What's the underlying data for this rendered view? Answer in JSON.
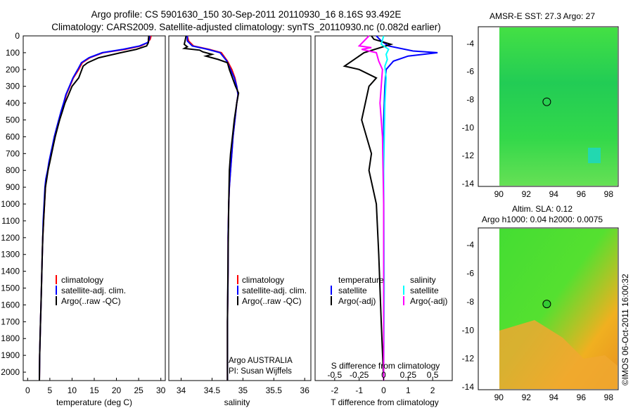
{
  "header": {
    "line1": "Argo profile: CS 5901630_150 30-Sep-2011 20110930_16 8.16S 93.492E",
    "line2": "Climatology: CARS2009. Satellite-adjusted climatology: synTS_20110930.nc (0.082d earlier)"
  },
  "colors": {
    "climatology": "#ff0000",
    "satellite": "#0000ff",
    "argo": "#000000",
    "sal_satellite": "#00ffff",
    "sal_argo": "#ff00ff",
    "map_ocean": "#33dd44",
    "map_land": "#ffffff"
  },
  "chart_data": [
    {
      "type": "line",
      "id": "temperature",
      "xlabel": "temperature (deg C)",
      "ylabel": "",
      "xlim": [
        -1,
        31
      ],
      "ylim": [
        2050,
        0
      ],
      "xticks": [
        "0",
        "5",
        "10",
        "15",
        "20",
        "25",
        "30"
      ],
      "xtick_values": [
        0,
        5,
        10,
        15,
        20,
        25,
        30
      ],
      "yticks": [
        "0",
        "100",
        "200",
        "300",
        "400",
        "500",
        "600",
        "700",
        "800",
        "900",
        "1000",
        "1100",
        "1200",
        "1300",
        "1400",
        "1500",
        "1600",
        "1700",
        "1800",
        "1900",
        "2000"
      ],
      "ytick_values": [
        0,
        100,
        200,
        300,
        400,
        500,
        600,
        700,
        800,
        900,
        1000,
        1100,
        1200,
        1300,
        1400,
        1500,
        1600,
        1700,
        1800,
        1900,
        2000
      ],
      "legend": [
        "climatology",
        "satellite-adj. clim.",
        "Argo(..raw -QC)"
      ],
      "series": [
        {
          "name": "climatology",
          "color": "#ff0000",
          "x": [
            27.8,
            27.6,
            27.0,
            25.5,
            22,
            17,
            14,
            12.3,
            11.5,
            10.3,
            9.5,
            8.7,
            8.2,
            7.6,
            7.1,
            6.6,
            6.1,
            5.7,
            5.3,
            4.9,
            4.6,
            4.2,
            4.0,
            3.8,
            3.6,
            3.4,
            3.3,
            3.2,
            3.1,
            3.0,
            2.9,
            2.8,
            2.7,
            2.65
          ],
          "y": [
            0,
            20,
            40,
            60,
            80,
            100,
            130,
            160,
            200,
            250,
            300,
            350,
            400,
            450,
            500,
            550,
            600,
            650,
            700,
            750,
            800,
            850,
            900,
            1000,
            1100,
            1200,
            1300,
            1400,
            1500,
            1600,
            1700,
            1800,
            1900,
            2050
          ]
        },
        {
          "name": "satellite-adj. clim.",
          "color": "#0000ff",
          "x": [
            27.5,
            27.4,
            27.0,
            25.2,
            21.5,
            16.8,
            13.8,
            12.1,
            11.3,
            10.2,
            9.4,
            8.6,
            8.1,
            7.5,
            7.0,
            6.5,
            6.0,
            5.6,
            5.2,
            4.8,
            4.5,
            4.1,
            3.9,
            3.7,
            3.5,
            3.4,
            3.3,
            3.2,
            3.1,
            3.0,
            2.9,
            2.8,
            2.7,
            2.65
          ],
          "y": [
            0,
            20,
            40,
            60,
            80,
            100,
            130,
            160,
            200,
            250,
            300,
            350,
            400,
            450,
            500,
            550,
            600,
            650,
            700,
            750,
            800,
            850,
            900,
            1000,
            1100,
            1200,
            1300,
            1400,
            1500,
            1600,
            1700,
            1800,
            1900,
            2050
          ]
        },
        {
          "name": "Argo(..raw -QC)",
          "color": "#000000",
          "x": [
            27.3,
            27.2,
            27.2,
            26.8,
            24.5,
            21,
            16,
            13.5,
            12.5,
            11.5,
            10.0,
            9.2,
            8.4,
            7.8,
            7.2,
            6.7,
            6.2,
            5.8,
            5.4,
            5.0,
            4.6,
            4.3,
            4.0,
            3.8,
            3.6,
            3.4,
            3.3,
            3.2,
            3.1,
            3.0,
            2.9,
            2.8,
            2.7,
            2.65
          ],
          "y": [
            0,
            20,
            40,
            60,
            80,
            100,
            130,
            160,
            180,
            250,
            300,
            350,
            400,
            450,
            500,
            550,
            600,
            650,
            700,
            750,
            800,
            850,
            900,
            1000,
            1100,
            1200,
            1300,
            1400,
            1500,
            1600,
            1700,
            1800,
            1900,
            2050
          ]
        }
      ]
    },
    {
      "type": "line",
      "id": "salinity",
      "xlabel": "salinity",
      "ylabel": "",
      "xlim": [
        33.8,
        36.1
      ],
      "ylim": [
        2050,
        0
      ],
      "xticks": [
        "34",
        "34.5",
        "35",
        "35.5",
        "36"
      ],
      "xtick_values": [
        34,
        34.5,
        35,
        35.5,
        36
      ],
      "legend": [
        "climatology",
        "satellite-adj. clim.",
        "Argo(..raw -QC)"
      ],
      "annotation": [
        "Argo AUSTRALIA",
        "PI: Susan Wijffels"
      ],
      "series": [
        {
          "name": "climatology",
          "color": "#ff0000",
          "x": [
            34.1,
            34.12,
            34.2,
            34.45,
            34.65,
            34.75,
            34.82,
            34.87,
            34.9,
            34.92,
            34.9,
            34.87,
            34.84,
            34.82,
            34.8,
            34.78,
            34.77,
            34.76,
            34.76,
            34.75,
            34.75
          ],
          "y": [
            0,
            30,
            60,
            80,
            100,
            150,
            200,
            250,
            300,
            350,
            400,
            500,
            600,
            700,
            800,
            900,
            1000,
            1200,
            1400,
            1700,
            2050
          ]
        },
        {
          "name": "satellite-adj. clim.",
          "color": "#0000ff",
          "x": [
            34.1,
            34.1,
            34.18,
            34.43,
            34.63,
            34.74,
            34.8,
            34.86,
            34.9,
            34.92,
            34.9,
            34.87,
            34.84,
            34.82,
            34.8,
            34.78,
            34.77,
            34.76,
            34.76,
            34.75,
            34.75
          ],
          "y": [
            0,
            30,
            60,
            80,
            100,
            150,
            200,
            250,
            300,
            350,
            400,
            500,
            600,
            700,
            800,
            900,
            1000,
            1200,
            1400,
            1700,
            2050
          ]
        },
        {
          "name": "Argo(..raw -QC)",
          "color": "#000000",
          "x": [
            34.08,
            34.05,
            34.1,
            34.05,
            34.3,
            34.35,
            34.5,
            34.4,
            34.6,
            34.75,
            34.78,
            34.83,
            34.88,
            34.93,
            34.9,
            34.86,
            34.83,
            34.8,
            34.78,
            34.77,
            34.76,
            34.75,
            34.75
          ],
          "y": [
            0,
            50,
            65,
            75,
            85,
            95,
            110,
            120,
            140,
            160,
            200,
            250,
            300,
            340,
            400,
            500,
            600,
            700,
            800,
            1000,
            1300,
            1700,
            2050
          ]
        }
      ]
    },
    {
      "type": "line",
      "id": "difference",
      "xlabel": "T difference from climatology",
      "xlabel2": "S difference from climatology",
      "xlim": [
        -2.8,
        2.8
      ],
      "ylim": [
        2050,
        0
      ],
      "xticks": [
        "-2",
        "-1",
        "0",
        "1",
        "2"
      ],
      "xtick_values": [
        -2,
        -1,
        0,
        1,
        2
      ],
      "s_xticks": [
        "-0.5",
        "-0.25",
        "0",
        "0.25",
        "0.5"
      ],
      "s_xtick_values": [
        -0.5,
        -0.25,
        0,
        0.25,
        0.5
      ],
      "legend_temperature": [
        "temperature",
        "satellite",
        "Argo(-adj)"
      ],
      "legend_salinity": [
        "salinity",
        "satellite",
        "Argo(-adj)"
      ],
      "series": [
        {
          "name": "satellite",
          "color": "#0000ff",
          "x": [
            -0.3,
            -0.1,
            0.2,
            1.2,
            2.2,
            1.0,
            0.4,
            0.1,
            0.05,
            0.0,
            0.0,
            0.0,
            0.0
          ],
          "y": [
            0,
            30,
            60,
            90,
            100,
            120,
            150,
            200,
            300,
            500,
            1000,
            1500,
            2050
          ]
        },
        {
          "name": "Argo(-adj)",
          "color": "#000000",
          "x": [
            -0.5,
            -0.4,
            0.3,
            -0.8,
            -1.6,
            -1.0,
            -0.3,
            -0.6,
            -0.9,
            -0.7,
            -0.5,
            -0.6,
            -0.3,
            -0.2,
            -0.1,
            0.0
          ],
          "y": [
            0,
            20,
            50,
            100,
            180,
            200,
            250,
            300,
            500,
            600,
            700,
            800,
            1000,
            1300,
            1700,
            2050
          ]
        },
        {
          "name": "sal satellite",
          "color": "#00ffff",
          "x": [
            0.0,
            -0.1,
            0.2,
            0.1,
            0.15,
            0.05,
            0.1,
            0.05,
            0.0,
            0.02,
            0.0
          ],
          "y": [
            0,
            50,
            80,
            110,
            140,
            180,
            250,
            400,
            800,
            1500,
            2050
          ]
        },
        {
          "name": "sal Argo(-adj)",
          "color": "#ff00ff",
          "x": [
            -0.6,
            -1.0,
            -0.5,
            -0.9,
            -0.3,
            -0.2,
            -0.05,
            -0.1,
            -0.15,
            -0.05,
            0.0,
            0.0
          ],
          "y": [
            0,
            60,
            70,
            80,
            100,
            150,
            200,
            300,
            400,
            600,
            1000,
            2050
          ]
        }
      ]
    },
    {
      "type": "heatmap",
      "id": "sst_map",
      "title": "AMSR-E SST: 27.3 Argo: 27",
      "xlim": [
        88.5,
        98.7
      ],
      "ylim": [
        -14.2,
        -2.8
      ],
      "xticks": [
        "90",
        "92",
        "94",
        "96",
        "98"
      ],
      "xtick_values": [
        90,
        92,
        94,
        96,
        98
      ],
      "yticks": [
        "-4",
        "-6",
        "-8",
        "-10",
        "-12",
        "-14"
      ],
      "ytick_values": [
        -4,
        -6,
        -8,
        -10,
        -12,
        -14
      ],
      "argo_position": [
        93.49,
        -8.16
      ]
    },
    {
      "type": "heatmap",
      "id": "sla_map",
      "title": "Altim. SLA: 0.12",
      "subtitle": "Argo h1000: 0.04 h2000: 0.0075",
      "xlim": [
        88.5,
        98.7
      ],
      "ylim": [
        -14.2,
        -2.8
      ],
      "xticks": [
        "90",
        "92",
        "94",
        "96",
        "98"
      ],
      "xtick_values": [
        90,
        92,
        94,
        96,
        98
      ],
      "yticks": [
        "-4",
        "-6",
        "-8",
        "-10",
        "-12",
        "-14"
      ],
      "ytick_values": [
        -4,
        -6,
        -8,
        -10,
        -12,
        -14
      ],
      "argo_position": [
        93.49,
        -8.16
      ]
    }
  ],
  "footer": {
    "credit": "©IMOS 06-Oct-2011 16:00:32"
  }
}
